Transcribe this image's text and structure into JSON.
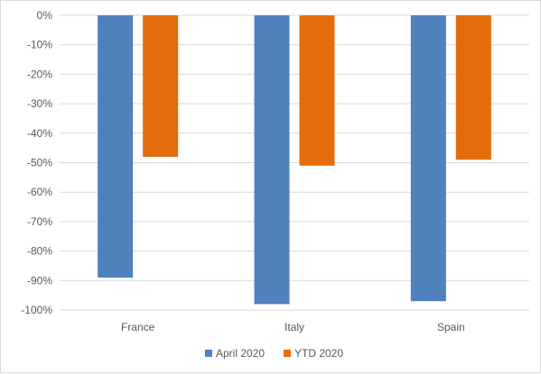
{
  "chart_data": {
    "type": "bar",
    "categories": [
      "France",
      "Italy",
      "Spain"
    ],
    "series": [
      {
        "name": "April 2020",
        "color": "#4f81bd",
        "values": [
          -89,
          -98,
          -97
        ]
      },
      {
        "name": "YTD 2020",
        "color": "#e46c0a",
        "values": [
          -48,
          -51,
          -49
        ]
      }
    ],
    "ylim": [
      -100,
      0
    ],
    "yticks": [
      0,
      -10,
      -20,
      -30,
      -40,
      -50,
      -60,
      -70,
      -80,
      -90,
      -100
    ],
    "ytick_labels": [
      "0%",
      "-10%",
      "-20%",
      "-30%",
      "-40%",
      "-50%",
      "-60%",
      "-70%",
      "-80%",
      "-90%",
      "-100%"
    ],
    "grid": true,
    "legend_position": "bottom"
  }
}
